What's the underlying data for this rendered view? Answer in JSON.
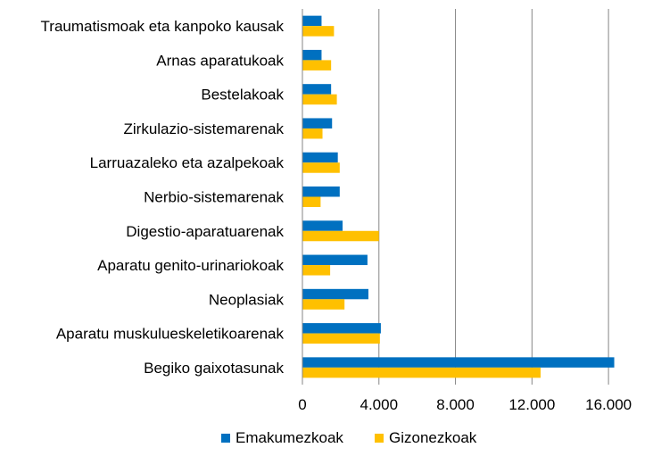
{
  "chart_data": {
    "type": "bar",
    "orientation": "horizontal",
    "categories": [
      "Traumatismoak eta kanpoko kausak",
      "Arnas aparatukoak",
      "Bestelakoak",
      "Zirkulazio-sistemarenak",
      "Larruazaleko eta azalpekoak",
      "Nerbio-sistemarenak",
      "Digestio-aparatuarenak",
      "Aparatu genito-urinariokoak",
      "Neoplasiak",
      "Aparatu muskulueskeletikoarenak",
      "Begiko gaixotasunak"
    ],
    "series": [
      {
        "name": "Emakumezkoak",
        "color": "#0070C0",
        "values": [
          1000,
          1000,
          1500,
          1550,
          1850,
          1950,
          2100,
          3400,
          3450,
          4100,
          16300
        ]
      },
      {
        "name": "Gizonezkoak",
        "color": "#FFC000",
        "values": [
          1650,
          1500,
          1800,
          1050,
          1950,
          950,
          4000,
          1450,
          2200,
          4050,
          12450
        ]
      }
    ],
    "xlim": [
      0,
      18000
    ],
    "xticks": [
      0,
      4000,
      8000,
      12000,
      16000
    ],
    "xtick_labels": [
      "0",
      "4.000",
      "8.000",
      "12.000",
      "16.000"
    ],
    "grid": "vertical",
    "legend_position": "bottom",
    "title": "",
    "xlabel": "",
    "ylabel": ""
  }
}
